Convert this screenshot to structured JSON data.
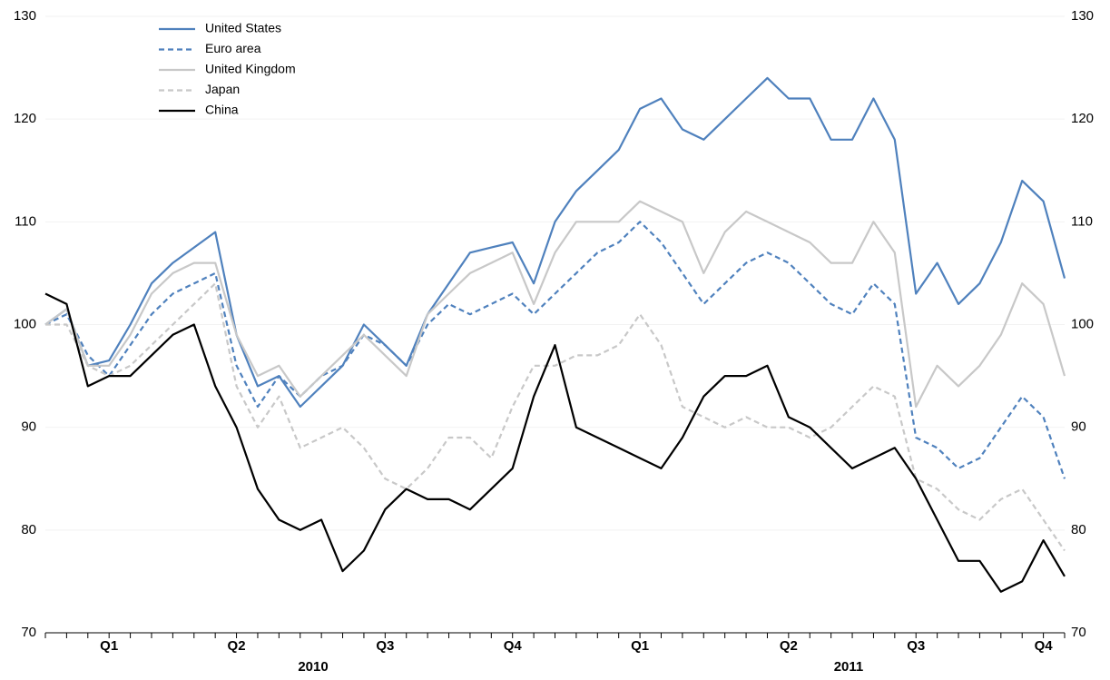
{
  "chart_data": {
    "type": "line",
    "categories": [
      null,
      null,
      null,
      "Q1",
      null,
      null,
      null,
      null,
      null,
      "Q2",
      null,
      null,
      null,
      null,
      null,
      null,
      "Q3",
      null,
      null,
      null,
      null,
      null,
      "Q4",
      null,
      null,
      null,
      null,
      null,
      "Q1",
      null,
      null,
      null,
      null,
      null,
      null,
      "Q2",
      null,
      null,
      null,
      null,
      null,
      "Q3",
      null,
      null,
      null,
      null,
      null,
      "Q4",
      null
    ],
    "years": [
      "2010",
      "2011"
    ],
    "series": [
      {
        "name": "United States",
        "color": "#4f81bd",
        "dashed": false,
        "values": [
          100,
          101.5,
          96,
          96.5,
          100,
          104,
          106,
          107.5,
          109,
          99,
          94,
          95,
          92,
          94,
          96,
          100,
          98,
          96,
          101,
          104,
          107,
          107.5,
          108,
          104,
          110,
          113,
          115,
          117,
          121,
          122,
          119,
          118,
          120,
          122,
          124,
          122,
          122,
          118,
          118,
          122,
          118,
          103,
          106,
          102,
          104,
          108,
          114,
          112,
          104.5
        ]
      },
      {
        "name": "Euro area",
        "color": "#4f81bd",
        "dashed": true,
        "values": [
          100,
          101,
          97,
          95,
          98,
          101,
          103,
          104,
          105,
          96,
          92,
          95,
          93,
          95,
          96,
          99,
          98,
          96,
          100,
          102,
          101,
          102,
          103,
          101,
          103,
          105,
          107,
          108,
          110,
          108,
          105,
          102,
          104,
          106,
          107,
          106,
          104,
          102,
          101,
          104,
          102,
          89,
          88,
          86,
          87,
          90,
          93,
          91,
          85
        ]
      },
      {
        "name": "United Kingdom",
        "color": "#c8c8c8",
        "dashed": false,
        "values": [
          100,
          101.5,
          96,
          96,
          99,
          103,
          105,
          106,
          106,
          99,
          95,
          96,
          93,
          95,
          97,
          99,
          97,
          95,
          101,
          103,
          105,
          106,
          107,
          102,
          107,
          110,
          110,
          110,
          112,
          111,
          110,
          105,
          109,
          111,
          110,
          109,
          108,
          106,
          106,
          110,
          107,
          92,
          96,
          94,
          96,
          99,
          104,
          102,
          95
        ]
      },
      {
        "name": "Japan",
        "color": "#c8c8c8",
        "dashed": true,
        "values": [
          100,
          100,
          96,
          95,
          96,
          98,
          100,
          102,
          104,
          94,
          90,
          93,
          88,
          89,
          90,
          88,
          85,
          84,
          86,
          89,
          89,
          87,
          92,
          96,
          96,
          97,
          97,
          98,
          101,
          98,
          92,
          91,
          90,
          91,
          90,
          90,
          89,
          90,
          92,
          94,
          93,
          85,
          84,
          82,
          81,
          83,
          84,
          81,
          78
        ]
      },
      {
        "name": "China",
        "color": "#000000",
        "dashed": false,
        "values": [
          103,
          102,
          94,
          95,
          95,
          97,
          99,
          100,
          94,
          90,
          84,
          81,
          80,
          81,
          76,
          78,
          82,
          84,
          83,
          83,
          82,
          84,
          86,
          93,
          98,
          90,
          89,
          88,
          87,
          86,
          89,
          93,
          95,
          95,
          96,
          91,
          90,
          88,
          86,
          87,
          88,
          85,
          81,
          77,
          77,
          74,
          75,
          79,
          75.5
        ]
      }
    ],
    "ylim": [
      70,
      130
    ],
    "yticks": [
      70,
      80,
      90,
      100,
      110,
      120,
      130
    ],
    "grid": true
  }
}
